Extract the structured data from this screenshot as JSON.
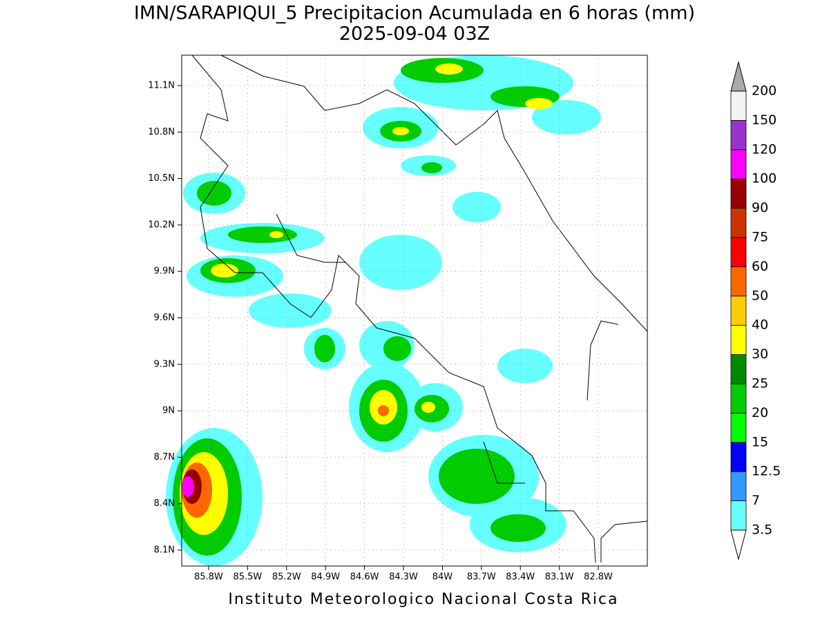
{
  "title": "IMN/SARAPIQUI_5 Precipitacion Acumulada en 6 horas (mm)",
  "subtitle": "2025-09-04 03Z",
  "map": {
    "lon_ticks": [
      "85.8W",
      "85.5W",
      "85.2W",
      "84.9W",
      "84.6W",
      "84.3W",
      "84W",
      "83.7W",
      "83.4W",
      "83.1W",
      "82.8W"
    ],
    "lat_ticks": [
      "11.1N",
      "10.8N",
      "10.5N",
      "10.2N",
      "9.9N",
      "9.6N",
      "9.3N",
      "9N",
      "8.7N",
      "8.4N",
      "8.1N"
    ]
  },
  "colorbar": {
    "levels": [
      3.5,
      7,
      12.5,
      15,
      20,
      25,
      30,
      40,
      50,
      60,
      75,
      90,
      100,
      120,
      150,
      200
    ],
    "colors": [
      "#66ffff",
      "#3399ff",
      "#0000ff",
      "#00ff00",
      "#00cc00",
      "#008800",
      "#ffff00",
      "#ffcc00",
      "#ff6600",
      "#ff0000",
      "#cc3300",
      "#990000",
      "#ff00ff",
      "#9933cc",
      "#f2f2f2"
    ],
    "under_color": "#ffffff",
    "over_color": "#aaaaaa"
  },
  "footer": "Instituto Meteorologico Nacional Costa Rica"
}
